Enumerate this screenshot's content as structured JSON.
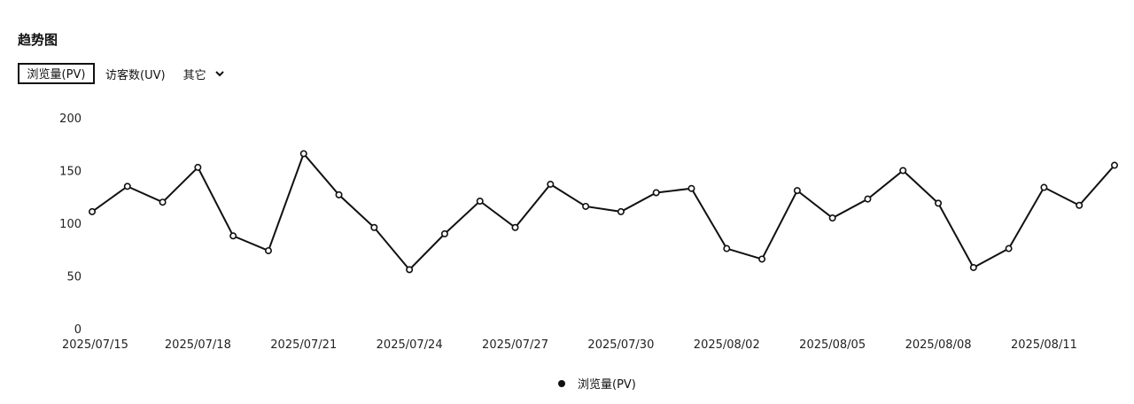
{
  "page": {
    "title": "趋势图",
    "tabs": [
      {
        "label": "浏览量(PV)",
        "active": true
      },
      {
        "label": "访客数(UV)",
        "active": false
      }
    ],
    "more_label": "其它",
    "more_icon": "chevron-down-icon"
  },
  "chart_data": {
    "type": "line",
    "title": "",
    "xlabel": "",
    "ylabel": "",
    "ylim": [
      0,
      200
    ],
    "yticks": [
      0,
      50,
      100,
      150,
      200
    ],
    "xtick_labels": [
      "2025/07/15",
      "2025/07/18",
      "2025/07/21",
      "2025/07/24",
      "2025/07/27",
      "2025/07/30",
      "2025/08/02",
      "2025/08/05",
      "2025/08/08",
      "2025/08/11"
    ],
    "x": [
      "2025/07/15",
      "2025/07/16",
      "2025/07/17",
      "2025/07/18",
      "2025/07/19",
      "2025/07/20",
      "2025/07/21",
      "2025/07/22",
      "2025/07/23",
      "2025/07/24",
      "2025/07/25",
      "2025/07/26",
      "2025/07/27",
      "2025/07/28",
      "2025/07/29",
      "2025/07/30",
      "2025/07/31",
      "2025/08/01",
      "2025/08/02",
      "2025/08/03",
      "2025/08/04",
      "2025/08/05",
      "2025/08/06",
      "2025/08/07",
      "2025/08/08",
      "2025/08/09",
      "2025/08/10",
      "2025/08/11",
      "2025/08/12",
      "2025/08/13"
    ],
    "series": [
      {
        "name": "浏览量(PV)",
        "color": "#111111",
        "values": [
          111,
          135,
          120,
          153,
          88,
          74,
          166,
          127,
          96,
          56,
          90,
          121,
          96,
          137,
          116,
          111,
          129,
          133,
          76,
          66,
          131,
          105,
          123,
          150,
          119,
          58,
          76,
          134,
          117,
          155
        ]
      }
    ],
    "legend": "bottom-center",
    "grid": false
  }
}
